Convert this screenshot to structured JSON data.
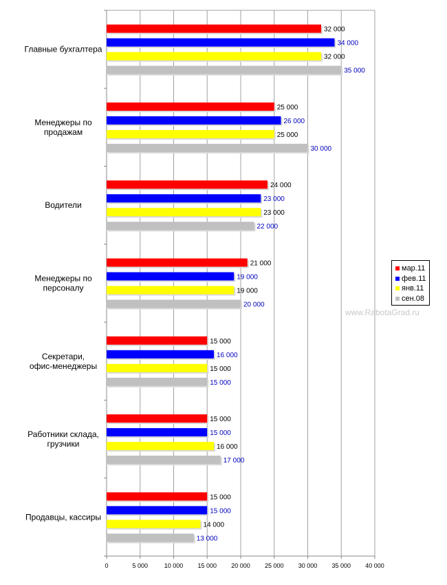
{
  "chart_data": {
    "type": "bar",
    "orientation": "horizontal",
    "categories": [
      "Главные бухгалтера",
      "Менеджеры по продажам",
      "Водители",
      "Менеджеры по персоналу",
      "Секретари, офис-менеджеры",
      "Работники склада, грузчики",
      "Продавцы, кассиры"
    ],
    "series": [
      {
        "name": "мар.11",
        "color": "#ff0000",
        "label_color": "#000000",
        "values": [
          32000,
          25000,
          24000,
          21000,
          15000,
          15000,
          15000
        ]
      },
      {
        "name": "фев.11",
        "color": "#0000ff",
        "label_color": "#0000c0",
        "values": [
          34000,
          26000,
          23000,
          19000,
          16000,
          15000,
          15000
        ]
      },
      {
        "name": "янв.11",
        "color": "#ffff00",
        "label_color": "#000000",
        "values": [
          32000,
          25000,
          23000,
          19000,
          15000,
          16000,
          14000
        ]
      },
      {
        "name": "сен.08",
        "color": "#c0c0c0",
        "label_color": "#0000c0",
        "values": [
          35000,
          30000,
          22000,
          20000,
          15000,
          17000,
          13000
        ]
      }
    ],
    "xlim": [
      0,
      40000
    ],
    "x_ticks": [
      0,
      5000,
      10000,
      15000,
      20000,
      25000,
      30000,
      35000,
      40000
    ],
    "x_tick_labels": [
      "0",
      "5 000",
      "10 000",
      "15 000",
      "20 000",
      "25 000",
      "30 000",
      "35 000",
      "40 000"
    ],
    "data_labels": [
      [
        "32 000",
        "34 000",
        "32 000",
        "35 000"
      ],
      [
        "25 000",
        "26 000",
        "25 000",
        "30 000"
      ],
      [
        "24 000",
        "23 000",
        "23 000",
        "22 000"
      ],
      [
        "21 000",
        "19 000",
        "19 000",
        "20 000"
      ],
      [
        "15 000",
        "16 000",
        "15 000",
        "15 000"
      ],
      [
        "15 000",
        "15 000",
        "16 000",
        "17 000"
      ],
      [
        "15 000",
        "15 000",
        "14 000",
        "13 000"
      ]
    ],
    "grid": true,
    "legend_position": "right"
  },
  "watermark": "www.RabotaGrad.ru"
}
